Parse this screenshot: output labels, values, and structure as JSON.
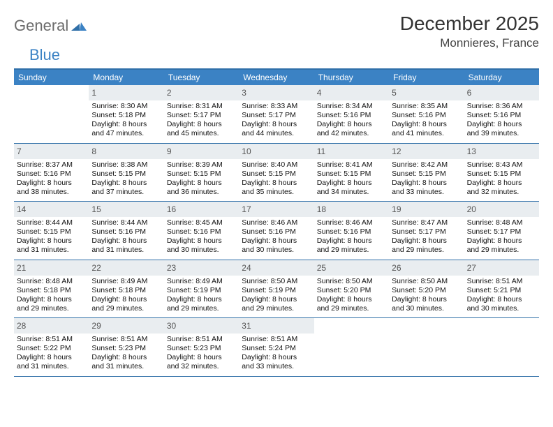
{
  "logo": {
    "part1": "General",
    "part2": "Blue"
  },
  "title": "December 2025",
  "location": "Monnieres, France",
  "colors": {
    "header_bg": "#3b82c4",
    "border": "#2f6fa8",
    "daynum_bg": "#e9edf0",
    "logo_gray": "#6b6b6b",
    "logo_blue": "#3b82c4"
  },
  "dayNames": [
    "Sunday",
    "Monday",
    "Tuesday",
    "Wednesday",
    "Thursday",
    "Friday",
    "Saturday"
  ],
  "weeks": [
    [
      {
        "num": "",
        "lines": []
      },
      {
        "num": "1",
        "lines": [
          "Sunrise: 8:30 AM",
          "Sunset: 5:18 PM",
          "Daylight: 8 hours",
          "and 47 minutes."
        ]
      },
      {
        "num": "2",
        "lines": [
          "Sunrise: 8:31 AM",
          "Sunset: 5:17 PM",
          "Daylight: 8 hours",
          "and 45 minutes."
        ]
      },
      {
        "num": "3",
        "lines": [
          "Sunrise: 8:33 AM",
          "Sunset: 5:17 PM",
          "Daylight: 8 hours",
          "and 44 minutes."
        ]
      },
      {
        "num": "4",
        "lines": [
          "Sunrise: 8:34 AM",
          "Sunset: 5:16 PM",
          "Daylight: 8 hours",
          "and 42 minutes."
        ]
      },
      {
        "num": "5",
        "lines": [
          "Sunrise: 8:35 AM",
          "Sunset: 5:16 PM",
          "Daylight: 8 hours",
          "and 41 minutes."
        ]
      },
      {
        "num": "6",
        "lines": [
          "Sunrise: 8:36 AM",
          "Sunset: 5:16 PM",
          "Daylight: 8 hours",
          "and 39 minutes."
        ]
      }
    ],
    [
      {
        "num": "7",
        "lines": [
          "Sunrise: 8:37 AM",
          "Sunset: 5:16 PM",
          "Daylight: 8 hours",
          "and 38 minutes."
        ]
      },
      {
        "num": "8",
        "lines": [
          "Sunrise: 8:38 AM",
          "Sunset: 5:15 PM",
          "Daylight: 8 hours",
          "and 37 minutes."
        ]
      },
      {
        "num": "9",
        "lines": [
          "Sunrise: 8:39 AM",
          "Sunset: 5:15 PM",
          "Daylight: 8 hours",
          "and 36 minutes."
        ]
      },
      {
        "num": "10",
        "lines": [
          "Sunrise: 8:40 AM",
          "Sunset: 5:15 PM",
          "Daylight: 8 hours",
          "and 35 minutes."
        ]
      },
      {
        "num": "11",
        "lines": [
          "Sunrise: 8:41 AM",
          "Sunset: 5:15 PM",
          "Daylight: 8 hours",
          "and 34 minutes."
        ]
      },
      {
        "num": "12",
        "lines": [
          "Sunrise: 8:42 AM",
          "Sunset: 5:15 PM",
          "Daylight: 8 hours",
          "and 33 minutes."
        ]
      },
      {
        "num": "13",
        "lines": [
          "Sunrise: 8:43 AM",
          "Sunset: 5:15 PM",
          "Daylight: 8 hours",
          "and 32 minutes."
        ]
      }
    ],
    [
      {
        "num": "14",
        "lines": [
          "Sunrise: 8:44 AM",
          "Sunset: 5:15 PM",
          "Daylight: 8 hours",
          "and 31 minutes."
        ]
      },
      {
        "num": "15",
        "lines": [
          "Sunrise: 8:44 AM",
          "Sunset: 5:16 PM",
          "Daylight: 8 hours",
          "and 31 minutes."
        ]
      },
      {
        "num": "16",
        "lines": [
          "Sunrise: 8:45 AM",
          "Sunset: 5:16 PM",
          "Daylight: 8 hours",
          "and 30 minutes."
        ]
      },
      {
        "num": "17",
        "lines": [
          "Sunrise: 8:46 AM",
          "Sunset: 5:16 PM",
          "Daylight: 8 hours",
          "and 30 minutes."
        ]
      },
      {
        "num": "18",
        "lines": [
          "Sunrise: 8:46 AM",
          "Sunset: 5:16 PM",
          "Daylight: 8 hours",
          "and 29 minutes."
        ]
      },
      {
        "num": "19",
        "lines": [
          "Sunrise: 8:47 AM",
          "Sunset: 5:17 PM",
          "Daylight: 8 hours",
          "and 29 minutes."
        ]
      },
      {
        "num": "20",
        "lines": [
          "Sunrise: 8:48 AM",
          "Sunset: 5:17 PM",
          "Daylight: 8 hours",
          "and 29 minutes."
        ]
      }
    ],
    [
      {
        "num": "21",
        "lines": [
          "Sunrise: 8:48 AM",
          "Sunset: 5:18 PM",
          "Daylight: 8 hours",
          "and 29 minutes."
        ]
      },
      {
        "num": "22",
        "lines": [
          "Sunrise: 8:49 AM",
          "Sunset: 5:18 PM",
          "Daylight: 8 hours",
          "and 29 minutes."
        ]
      },
      {
        "num": "23",
        "lines": [
          "Sunrise: 8:49 AM",
          "Sunset: 5:19 PM",
          "Daylight: 8 hours",
          "and 29 minutes."
        ]
      },
      {
        "num": "24",
        "lines": [
          "Sunrise: 8:50 AM",
          "Sunset: 5:19 PM",
          "Daylight: 8 hours",
          "and 29 minutes."
        ]
      },
      {
        "num": "25",
        "lines": [
          "Sunrise: 8:50 AM",
          "Sunset: 5:20 PM",
          "Daylight: 8 hours",
          "and 29 minutes."
        ]
      },
      {
        "num": "26",
        "lines": [
          "Sunrise: 8:50 AM",
          "Sunset: 5:20 PM",
          "Daylight: 8 hours",
          "and 30 minutes."
        ]
      },
      {
        "num": "27",
        "lines": [
          "Sunrise: 8:51 AM",
          "Sunset: 5:21 PM",
          "Daylight: 8 hours",
          "and 30 minutes."
        ]
      }
    ],
    [
      {
        "num": "28",
        "lines": [
          "Sunrise: 8:51 AM",
          "Sunset: 5:22 PM",
          "Daylight: 8 hours",
          "and 31 minutes."
        ]
      },
      {
        "num": "29",
        "lines": [
          "Sunrise: 8:51 AM",
          "Sunset: 5:23 PM",
          "Daylight: 8 hours",
          "and 31 minutes."
        ]
      },
      {
        "num": "30",
        "lines": [
          "Sunrise: 8:51 AM",
          "Sunset: 5:23 PM",
          "Daylight: 8 hours",
          "and 32 minutes."
        ]
      },
      {
        "num": "31",
        "lines": [
          "Sunrise: 8:51 AM",
          "Sunset: 5:24 PM",
          "Daylight: 8 hours",
          "and 33 minutes."
        ]
      },
      {
        "num": "",
        "lines": []
      },
      {
        "num": "",
        "lines": []
      },
      {
        "num": "",
        "lines": []
      }
    ]
  ]
}
